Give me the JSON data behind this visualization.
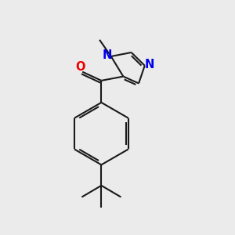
{
  "bg_color": "#ebebeb",
  "bond_color": "#1a1a1a",
  "N_color": "#0000ee",
  "O_color": "#ee0000",
  "line_width": 1.5,
  "font_size": 10.5,
  "fig_size": [
    3.0,
    3.0
  ],
  "dpi": 100,
  "xlim": [
    0,
    10
  ],
  "ylim": [
    0,
    10
  ]
}
